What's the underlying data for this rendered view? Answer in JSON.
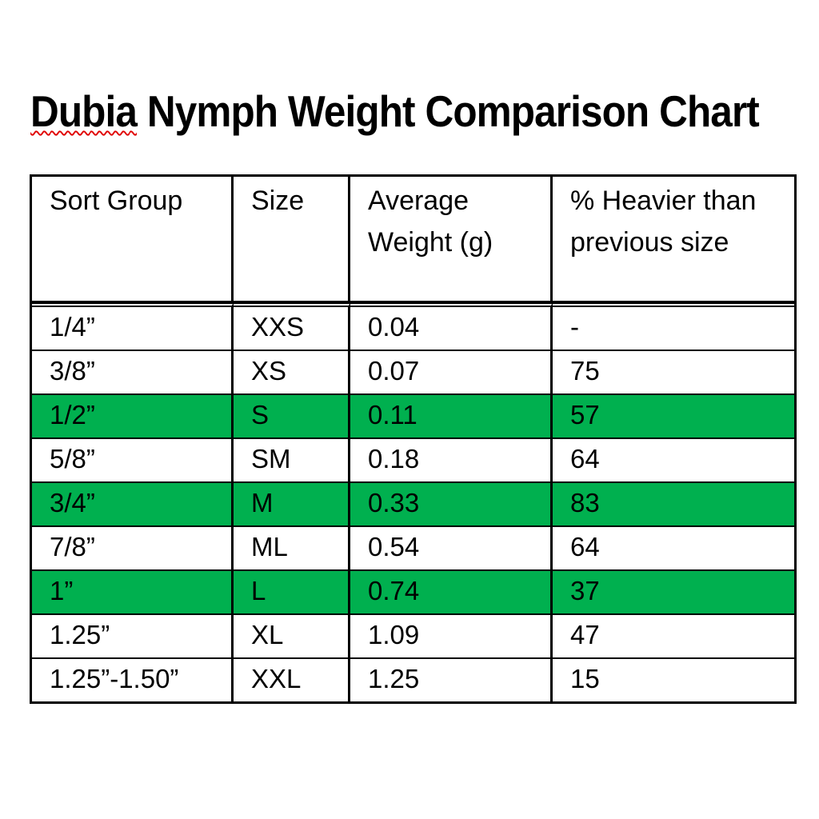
{
  "chart_data": {
    "type": "table",
    "title": "Dubia Nymph Weight Comparison Chart",
    "title_spellcheck_underlined_word": "Dubia",
    "columns": [
      "Sort Group",
      "Size",
      "Average Weight (g)",
      "% Heavier than previous size"
    ],
    "rows": [
      [
        "1/4”",
        "XXS",
        "0.04",
        "-"
      ],
      [
        "3/8”",
        "XS",
        "0.07",
        "75"
      ],
      [
        "1/2”",
        "S",
        "0.11",
        "57"
      ],
      [
        "5/8”",
        "SM",
        "0.18",
        "64"
      ],
      [
        "3/4”",
        "M",
        "0.33",
        "83"
      ],
      [
        "7/8”",
        "ML",
        "0.54",
        "64"
      ],
      [
        "1”",
        "L",
        "0.74",
        "37"
      ],
      [
        "1.25”",
        "XL",
        "1.09",
        "47"
      ],
      [
        "1.25”-1.50”",
        "XXL",
        "1.25",
        "15"
      ]
    ],
    "highlighted_row_indices": [
      2,
      4,
      6
    ],
    "highlight_color": "#00B04F",
    "text_color": "#000000",
    "border_color": "#000000",
    "spellcheck_underline_color": "#e00000",
    "background": "#ffffff"
  },
  "title_parts": {
    "word1": "Dubia",
    "rest": " Nymph Weight Comparison Chart"
  }
}
